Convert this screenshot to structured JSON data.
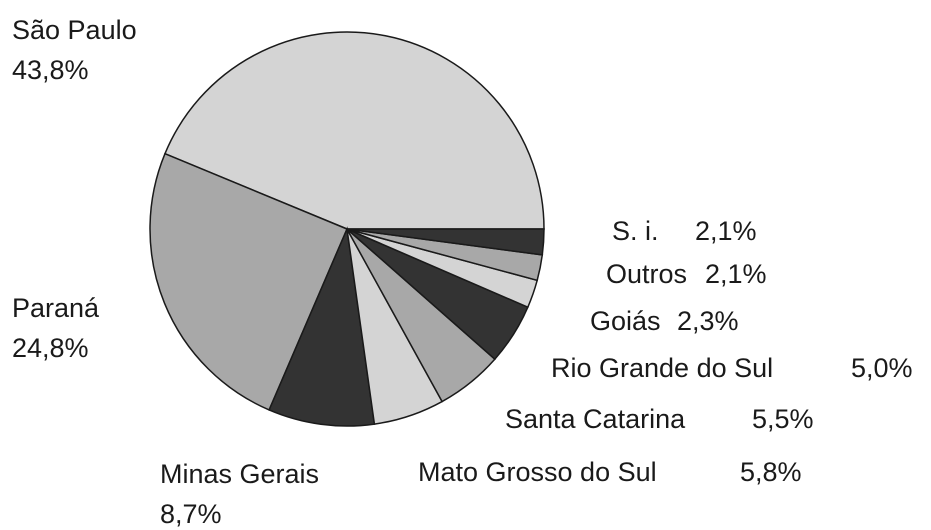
{
  "chart_data": {
    "type": "pie",
    "categories": [
      "São Paulo",
      "Paraná",
      "Minas Gerais",
      "Mato Grosso do Sul",
      "Santa Catarina",
      "Rio Grande do Sul",
      "Goiás",
      "Outros",
      "S. i."
    ],
    "values": [
      43.8,
      24.8,
      8.7,
      5.8,
      5.5,
      5.0,
      2.3,
      2.1,
      2.1
    ],
    "value_labels": [
      "43,8%",
      "24,8%",
      "8,7%",
      "5,8%",
      "5,5%",
      "5,0%",
      "2,3%",
      "2,1%",
      "2,1%"
    ],
    "colors": [
      "#d4d4d4",
      "#a8a8a8",
      "#333333",
      "#d4d4d4",
      "#a8a8a8",
      "#333333",
      "#d4d4d4",
      "#a8a8a8",
      "#333333"
    ]
  }
}
